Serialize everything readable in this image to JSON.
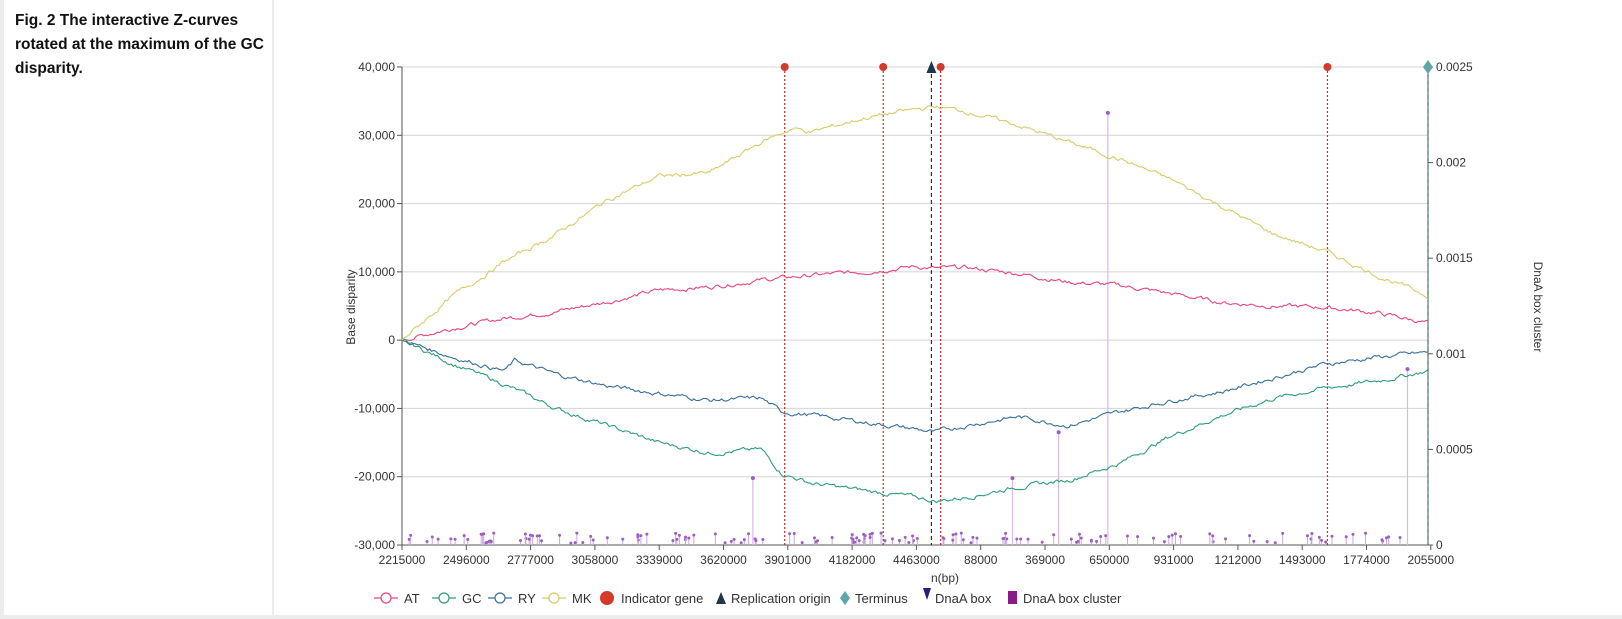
{
  "caption": "Fig. 2 The interactive Z-curves rotated at the maximum of the GC disparity.",
  "chart_data": {
    "type": "line",
    "xlabel": "n(bp)",
    "ylabel": "Base disparity",
    "y2label": "DnaA box cluster",
    "ylim": [
      -30000,
      40000
    ],
    "y2lim": [
      0,
      0.0025
    ],
    "ytick_labels": [
      "40,000",
      "30,000",
      "20,000",
      "10,000",
      "0",
      "-10,000",
      "-20,000",
      "-30,000"
    ],
    "y2tick_labels": [
      "0.0025",
      "0.002",
      "0.0015",
      "0.001",
      "0.0005",
      "0"
    ],
    "xtick_labels": [
      "2215000",
      "2496000",
      "2777000",
      "3058000",
      "3339000",
      "3620000",
      "3901000",
      "4182000",
      "4463000",
      "88000",
      "369000",
      "650000",
      "931000",
      "1212000",
      "1493000",
      "1774000",
      "2055000"
    ],
    "grid": true,
    "legend_position": "bottom",
    "series": [
      {
        "name": "AT",
        "color": "#e8467c",
        "x": [
          0,
          0.05,
          0.1,
          0.15,
          0.2,
          0.25,
          0.3,
          0.35,
          0.4,
          0.45,
          0.5,
          0.52,
          0.55,
          0.6,
          0.65,
          0.7,
          0.75,
          0.8,
          0.85,
          0.9,
          0.95,
          1.0
        ],
        "values": [
          0,
          1800,
          3200,
          4200,
          5600,
          7300,
          7800,
          8800,
          9500,
          10000,
          10800,
          10500,
          10600,
          9800,
          8500,
          8000,
          6800,
          5500,
          5000,
          4800,
          4000,
          2500
        ]
      },
      {
        "name": "GC",
        "color": "#2e9e7a",
        "x": [
          0,
          0.05,
          0.1,
          0.15,
          0.2,
          0.25,
          0.3,
          0.35,
          0.37,
          0.4,
          0.45,
          0.5,
          0.52,
          0.55,
          0.6,
          0.65,
          0.7,
          0.75,
          0.8,
          0.85,
          0.9,
          0.95,
          1.0
        ],
        "values": [
          0,
          -3500,
          -6500,
          -10000,
          -12500,
          -15000,
          -16500,
          -16000,
          -19500,
          -21000,
          -22000,
          -23000,
          -23600,
          -23000,
          -21500,
          -20500,
          -18000,
          -14000,
          -11000,
          -8500,
          -7000,
          -6000,
          -4500
        ]
      },
      {
        "name": "RY",
        "color": "#3a6f9a",
        "x": [
          0,
          0.05,
          0.1,
          0.11,
          0.15,
          0.2,
          0.25,
          0.3,
          0.35,
          0.37,
          0.4,
          0.45,
          0.5,
          0.52,
          0.55,
          0.6,
          0.65,
          0.7,
          0.75,
          0.8,
          0.85,
          0.9,
          0.95,
          1.0
        ],
        "values": [
          0,
          -2500,
          -4500,
          -3000,
          -5000,
          -6700,
          -7800,
          -8800,
          -8500,
          -10500,
          -11000,
          -12000,
          -13000,
          -13500,
          -12500,
          -11200,
          -12500,
          -10500,
          -8800,
          -7500,
          -5500,
          -3500,
          -2500,
          -1800
        ]
      },
      {
        "name": "MK",
        "color": "#d6cc6a",
        "x": [
          0,
          0.05,
          0.1,
          0.15,
          0.2,
          0.25,
          0.3,
          0.35,
          0.38,
          0.4,
          0.45,
          0.5,
          0.52,
          0.55,
          0.6,
          0.65,
          0.7,
          0.75,
          0.8,
          0.85,
          0.9,
          0.95,
          1.0
        ],
        "values": [
          0,
          6500,
          11500,
          15500,
          20500,
          24000,
          24500,
          29000,
          31000,
          30500,
          32500,
          33800,
          34200,
          33500,
          31500,
          29000,
          26500,
          23500,
          19500,
          15500,
          13000,
          9500,
          6500
        ]
      }
    ],
    "indicator_genes_x": [
      0.373,
      0.469,
      0.525,
      0.902
    ],
    "replication_origin_x": 0.516,
    "terminus_x": 1.0,
    "dnaa_box_cluster_peaks": [
      {
        "x": 0.688,
        "y2": 0.00226
      },
      {
        "x": 0.98,
        "y2": 0.00092
      },
      {
        "x": 0.342,
        "y2": 0.00035
      },
      {
        "x": 0.64,
        "y2": 0.00059
      },
      {
        "x": 0.595,
        "y2": 0.00035
      }
    ],
    "legend": [
      {
        "name": "AT",
        "marker": "circle-line",
        "color": "#e8467c"
      },
      {
        "name": "GC",
        "marker": "circle-line",
        "color": "#2e9e7a"
      },
      {
        "name": "RY",
        "marker": "circle-line",
        "color": "#3a6f9a"
      },
      {
        "name": "MK",
        "marker": "circle-line",
        "color": "#d6cc6a"
      },
      {
        "name": "Indicator gene",
        "marker": "filled-circle",
        "color": "#d33a2c"
      },
      {
        "name": "Replication origin",
        "marker": "triangle",
        "color": "#22364a"
      },
      {
        "name": "Terminus",
        "marker": "diamond",
        "color": "#5fa6a8"
      },
      {
        "name": "DnaA box",
        "marker": "pin",
        "color": "#2d1a7a"
      },
      {
        "name": "DnaA box cluster",
        "marker": "square",
        "color": "#8a1a8a"
      }
    ]
  }
}
